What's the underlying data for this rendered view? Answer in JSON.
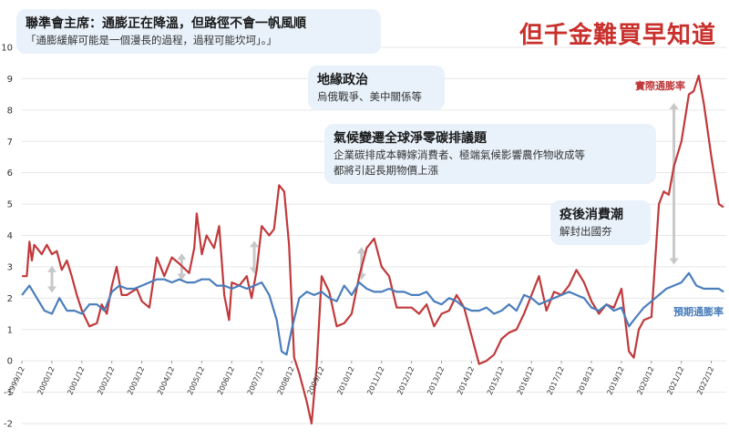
{
  "headline": "但千金難買早知道",
  "callouts": [
    {
      "title": "聯準會主席：通膨正在降溫，但路徑不會一帆風順",
      "lines": [
        "「通膨緩解可能是一個漫長的過程，過程可能坎坷」。」"
      ]
    },
    {
      "title": "地緣政治",
      "lines": [
        "烏俄戰爭、美中關係等"
      ]
    },
    {
      "title": "氣候變遷全球淨零碳排議題",
      "lines": [
        "企業碳排成本轉嫁消費者、極端氣候影響農作物收成等",
        "都將引起長期物價上漲"
      ]
    },
    {
      "title": "疫後消費潮",
      "lines": [
        "解封出國夯"
      ]
    }
  ],
  "colors": {
    "actual": "#c0393b",
    "expected": "#4a7ebb",
    "arrow": "#c8c8c8",
    "grid": "#e6e6e6",
    "callout_bg": "#e9f2fb"
  },
  "chart_data": {
    "type": "line",
    "title": "",
    "xlabel": "",
    "ylabel": "",
    "ylim": [
      -2,
      10
    ],
    "yticks": [
      -2,
      -1,
      0,
      1,
      2,
      3,
      4,
      5,
      6,
      7,
      8,
      9,
      10
    ],
    "xlim": [
      1999.917,
      2023.417
    ],
    "xtick_labels": [
      "1999/12",
      "2000/12",
      "2001/12",
      "2002/12",
      "2003/12",
      "2004/12",
      "2005/12",
      "2006/12",
      "2007/12",
      "2008/12",
      "2009/12",
      "2010/12",
      "2011/12",
      "2012/12",
      "2013/12",
      "2014/12",
      "2015/12",
      "2016/12",
      "2017/12",
      "2018/12",
      "2019/12",
      "2020/12",
      "2021/12",
      "2022/12"
    ],
    "series": [
      {
        "name": "實際通膨率",
        "x": [
          1999.92,
          2000.08,
          2000.17,
          2000.25,
          2000.33,
          2000.42,
          2000.58,
          2000.75,
          2000.92,
          2001.08,
          2001.25,
          2001.42,
          2001.58,
          2001.75,
          2001.92,
          2002.17,
          2002.42,
          2002.58,
          2002.75,
          2002.92,
          2003.08,
          2003.25,
          2003.42,
          2003.58,
          2003.75,
          2003.92,
          2004.17,
          2004.42,
          2004.67,
          2004.92,
          2005.17,
          2005.5,
          2005.67,
          2005.75,
          2005.92,
          2006.08,
          2006.33,
          2006.5,
          2006.67,
          2006.83,
          2006.92,
          2007.17,
          2007.42,
          2007.58,
          2007.75,
          2007.92,
          2008.17,
          2008.33,
          2008.5,
          2008.67,
          2008.83,
          2009.0,
          2009.17,
          2009.42,
          2009.58,
          2009.75,
          2009.92,
          2010.17,
          2010.42,
          2010.67,
          2010.92,
          2011.17,
          2011.42,
          2011.67,
          2011.92,
          2012.17,
          2012.42,
          2012.67,
          2012.92,
          2013.17,
          2013.42,
          2013.67,
          2013.92,
          2014.17,
          2014.42,
          2014.67,
          2014.92,
          2015.17,
          2015.42,
          2015.67,
          2015.92,
          2016.17,
          2016.42,
          2016.67,
          2016.92,
          2017.17,
          2017.42,
          2017.67,
          2017.92,
          2018.17,
          2018.42,
          2018.67,
          2018.92,
          2019.17,
          2019.42,
          2019.67,
          2019.92,
          2020.17,
          2020.33,
          2020.5,
          2020.67,
          2020.92,
          2021.17,
          2021.33,
          2021.5,
          2021.67,
          2021.92,
          2022.17,
          2022.33,
          2022.5,
          2022.67,
          2022.92,
          2023.17,
          2023.33
        ],
        "values": [
          2.7,
          2.7,
          3.8,
          3.2,
          3.7,
          3.6,
          3.4,
          3.7,
          3.4,
          3.5,
          2.9,
          3.2,
          2.7,
          2.1,
          1.6,
          1.1,
          1.2,
          1.8,
          1.5,
          2.4,
          3.0,
          2.1,
          2.1,
          2.2,
          2.3,
          1.9,
          1.7,
          3.3,
          2.7,
          3.3,
          3.1,
          2.8,
          3.6,
          4.7,
          3.4,
          4.0,
          3.6,
          4.3,
          2.1,
          1.3,
          2.5,
          2.4,
          2.7,
          2.0,
          2.9,
          4.3,
          4.0,
          4.2,
          5.6,
          5.4,
          3.7,
          0.1,
          -0.4,
          -1.3,
          -2.0,
          -0.2,
          2.7,
          2.2,
          1.1,
          1.2,
          1.5,
          2.7,
          3.6,
          3.9,
          3.0,
          2.7,
          1.7,
          1.7,
          1.7,
          1.5,
          1.8,
          1.1,
          1.5,
          1.6,
          2.1,
          1.7,
          0.8,
          -0.1,
          0.0,
          0.2,
          0.7,
          0.9,
          1.0,
          1.5,
          2.1,
          2.7,
          1.6,
          2.2,
          2.1,
          2.4,
          2.9,
          2.5,
          1.9,
          1.5,
          1.8,
          1.7,
          2.3,
          0.3,
          0.1,
          1.0,
          1.3,
          1.4,
          5.0,
          5.4,
          5.3,
          6.2,
          7.0,
          8.5,
          8.6,
          9.1,
          8.2,
          6.5,
          5.0,
          4.9
        ]
      },
      {
        "name": "預期通膨率",
        "x": [
          1999.92,
          2000.17,
          2000.42,
          2000.67,
          2000.92,
          2001.17,
          2001.42,
          2001.67,
          2001.92,
          2002.17,
          2002.42,
          2002.67,
          2002.92,
          2003.17,
          2003.42,
          2003.67,
          2003.92,
          2004.17,
          2004.42,
          2004.67,
          2004.92,
          2005.17,
          2005.42,
          2005.67,
          2005.92,
          2006.17,
          2006.42,
          2006.67,
          2006.92,
          2007.17,
          2007.42,
          2007.67,
          2007.92,
          2008.17,
          2008.42,
          2008.58,
          2008.75,
          2008.92,
          2009.17,
          2009.42,
          2009.67,
          2009.92,
          2010.17,
          2010.42,
          2010.67,
          2010.92,
          2011.17,
          2011.42,
          2011.67,
          2011.92,
          2012.17,
          2012.42,
          2012.67,
          2012.92,
          2013.17,
          2013.42,
          2013.67,
          2013.92,
          2014.17,
          2014.42,
          2014.67,
          2014.92,
          2015.17,
          2015.42,
          2015.67,
          2015.92,
          2016.17,
          2016.42,
          2016.67,
          2016.92,
          2017.17,
          2017.42,
          2017.67,
          2017.92,
          2018.17,
          2018.42,
          2018.67,
          2018.92,
          2019.17,
          2019.42,
          2019.67,
          2019.92,
          2020.17,
          2020.33,
          2020.5,
          2020.67,
          2020.92,
          2021.17,
          2021.42,
          2021.67,
          2021.92,
          2022.17,
          2022.42,
          2022.67,
          2022.92,
          2023.17,
          2023.33
        ],
        "values": [
          2.1,
          2.4,
          2.0,
          1.6,
          1.5,
          2.0,
          1.6,
          1.6,
          1.5,
          1.8,
          1.8,
          1.6,
          2.2,
          2.4,
          2.3,
          2.3,
          2.4,
          2.5,
          2.6,
          2.6,
          2.5,
          2.6,
          2.5,
          2.5,
          2.6,
          2.6,
          2.4,
          2.4,
          2.3,
          2.4,
          2.3,
          2.4,
          2.5,
          2.1,
          1.3,
          0.3,
          0.2,
          1.0,
          2.0,
          2.2,
          2.1,
          2.2,
          2.0,
          1.9,
          2.4,
          2.1,
          2.5,
          2.3,
          2.2,
          2.2,
          2.3,
          2.2,
          2.2,
          2.1,
          2.1,
          2.2,
          1.9,
          1.8,
          2.0,
          1.9,
          1.7,
          1.6,
          1.6,
          1.7,
          1.5,
          1.6,
          1.8,
          1.6,
          2.1,
          2.0,
          1.8,
          1.9,
          2.0,
          2.1,
          2.2,
          2.1,
          2.0,
          1.7,
          1.6,
          1.8,
          1.6,
          1.7,
          1.1,
          1.3,
          1.5,
          1.7,
          1.9,
          2.1,
          2.3,
          2.4,
          2.5,
          2.8,
          2.4,
          2.3,
          2.3,
          2.3,
          2.2
        ]
      }
    ],
    "arrows": [
      {
        "x": 2000.92,
        "from": 2.2,
        "to": 3.0
      },
      {
        "x": 2005.25,
        "from": 2.6,
        "to": 3.4
      },
      {
        "x": 2007.67,
        "from": 2.8,
        "to": 3.8
      },
      {
        "x": 2011.25,
        "from": 2.6,
        "to": 3.6
      },
      {
        "x": 2021.67,
        "from": 3.1,
        "to": 8.2
      }
    ]
  }
}
